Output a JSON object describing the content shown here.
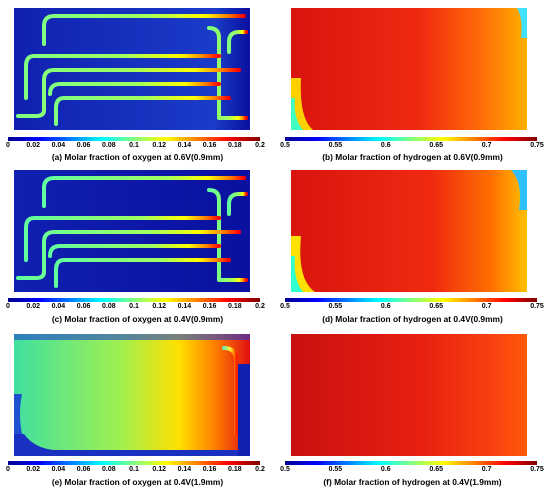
{
  "colors": {
    "jet": [
      "#00008f",
      "#0000ff",
      "#0080ff",
      "#00ffff",
      "#80ff80",
      "#ffff00",
      "#ff8000",
      "#ff0000",
      "#800000"
    ],
    "oxygen_background": "#0a14a8",
    "hydrogen_background": "#e01e14"
  },
  "panels": [
    {
      "id": "a",
      "caption": "(a) Molar fraction of oxygen at 0.6V(0.9mm)",
      "species": "oxygen",
      "ticks": [
        "0",
        "0.02",
        "0.04",
        "0.06",
        "0.08",
        "0.1",
        "0.12",
        "0.14",
        "0.16",
        "0.18",
        "0.2"
      ],
      "range": [
        0,
        0.2
      ]
    },
    {
      "id": "b",
      "caption": "(b) Molar fraction of hydrogen at 0.6V(0.9mm)",
      "species": "hydrogen",
      "ticks": [
        "0.5",
        "0.55",
        "0.6",
        "0.65",
        "0.7",
        "0.75"
      ],
      "range": [
        0.5,
        0.75
      ]
    },
    {
      "id": "c",
      "caption": "(c) Molar fraction of oxygen at 0.4V(0.9mm)",
      "species": "oxygen",
      "ticks": [
        "0",
        "0.02",
        "0.04",
        "0.06",
        "0.08",
        "0.1",
        "0.12",
        "0.14",
        "0.16",
        "0.18",
        "0.2"
      ],
      "range": [
        0,
        0.2
      ]
    },
    {
      "id": "d",
      "caption": "(d) Molar fraction of hydrogen at 0.4V(0.9mm)",
      "species": "hydrogen",
      "ticks": [
        "0.5",
        "0.55",
        "0.6",
        "0.65",
        "0.7",
        "0.75"
      ],
      "range": [
        0.5,
        0.75
      ]
    },
    {
      "id": "e",
      "caption": "(e) Molar fraction of oxygen at 0.4V(1.9mm)",
      "species": "oxygen",
      "ticks": [
        "0",
        "0.02",
        "0.04",
        "0.06",
        "0.08",
        "0.1",
        "0.12",
        "0.14",
        "0.16",
        "0.18",
        "0.2"
      ],
      "range": [
        0,
        0.2
      ]
    },
    {
      "id": "f",
      "caption": "(f) Molar fraction of hydrogen at 0.4V(1.9mm)",
      "species": "hydrogen",
      "ticks": [
        "0.5",
        "0.55",
        "0.6",
        "0.65",
        "0.7",
        "0.75"
      ],
      "range": [
        0.5,
        0.75
      ]
    }
  ]
}
